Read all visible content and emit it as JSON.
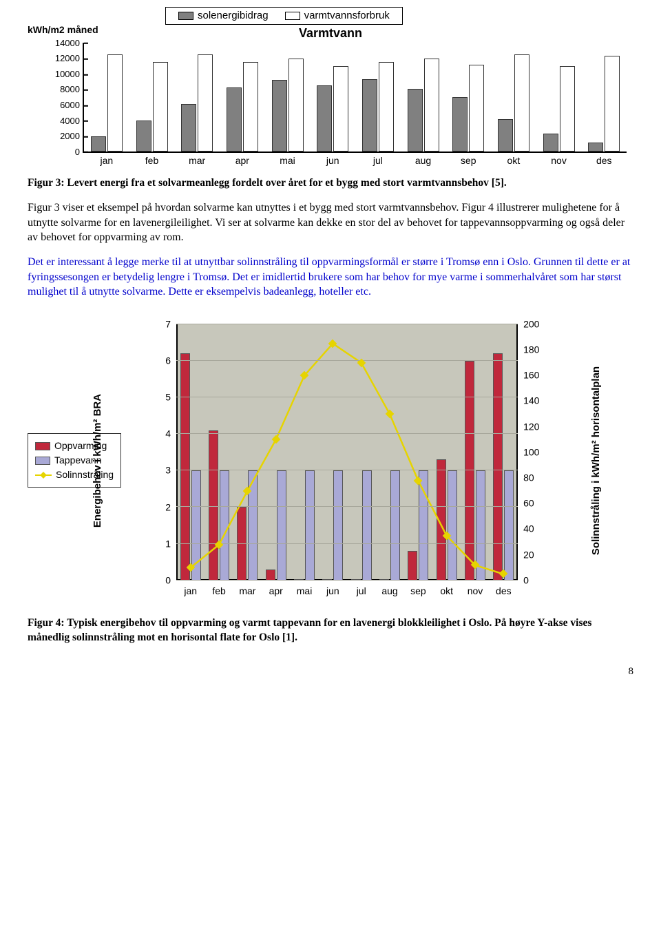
{
  "chart1": {
    "type": "bar",
    "title": "Varmtvann",
    "ylabel": "kWh/m2 måned",
    "ymax": 14000,
    "yticks": [
      0,
      2000,
      4000,
      6000,
      8000,
      10000,
      12000,
      14000
    ],
    "categories": [
      "jan",
      "feb",
      "mar",
      "apr",
      "mai",
      "jun",
      "jul",
      "aug",
      "sep",
      "okt",
      "nov",
      "des"
    ],
    "series": [
      {
        "name": "solenergibidrag",
        "color": "#808080",
        "values": [
          2000,
          4000,
          6100,
          8300,
          9200,
          8500,
          9300,
          8100,
          7000,
          4200,
          2300,
          1200
        ]
      },
      {
        "name": "varmtvannsforbruk",
        "color": "#ffffff",
        "values": [
          12500,
          11500,
          12500,
          11500,
          12000,
          11000,
          11500,
          12000,
          11200,
          12500,
          11000,
          12300
        ]
      }
    ],
    "axis_fontsize": 13,
    "title_fontsize": 18,
    "bar_border": "#333333"
  },
  "caption1": "Figur 3: Levert energi fra et solvarmeanlegg fordelt over året for et bygg med stort varmtvannsbehov [5].",
  "para1": "Figur 3 viser et eksempel på hvordan solvarme kan utnyttes i et bygg med stort varmtvannsbehov. Figur 4 illustrerer mulighetene for å utnytte solvarme for en lavenergileilighet. Vi ser at solvarme kan dekke en stor del av behovet for tappevannsoppvarming og også deler av behovet for oppvarming av rom.",
  "para2": "Det er interessant å legge merke til at utnyttbar solinnstråling til oppvarmingsformål er større i Tromsø enn i Oslo. Grunnen til dette er at fyringssesongen er betydelig lengre i Tromsø. Det er imidlertid brukere som har behov for mye varme i sommerhalvåret som har størst mulighet til å utnytte solvarme. Dette er eksempelvis badeanlegg, hoteller etc.",
  "chart2": {
    "type": "bar+line",
    "categories": [
      "jan",
      "feb",
      "mar",
      "apr",
      "mai",
      "jun",
      "jul",
      "aug",
      "sep",
      "okt",
      "nov",
      "des"
    ],
    "leftAxis": {
      "label": "Energibehov i kWh/m² BRA",
      "min": 0,
      "max": 7,
      "ticks": [
        0,
        1,
        2,
        3,
        4,
        5,
        6,
        7
      ]
    },
    "rightAxis": {
      "label": "Solinnstråling i kWh/m² horisontalplan",
      "min": 0,
      "max": 200,
      "ticks": [
        0,
        20,
        40,
        60,
        80,
        100,
        120,
        140,
        160,
        180,
        200
      ]
    },
    "bg_color": "#c7c7bb",
    "grid_color": "#a8a89c",
    "bars": [
      {
        "name": "Oppvarming",
        "color": "#c0283c",
        "values": [
          6.2,
          4.1,
          2.0,
          0.3,
          0,
          0,
          0,
          0,
          0.8,
          3.3,
          6.0,
          6.2
        ]
      },
      {
        "name": "Tappevann",
        "color": "#a9a9d6",
        "values": [
          3.0,
          3.0,
          3.0,
          3.0,
          3.0,
          3.0,
          3.0,
          3.0,
          3.0,
          3.0,
          3.0,
          3.0
        ]
      }
    ],
    "line": {
      "name": "Solinnstråling",
      "color": "#e6d400",
      "values": [
        10,
        28,
        70,
        110,
        160,
        185,
        170,
        130,
        78,
        35,
        12,
        5
      ]
    },
    "legend_labels": [
      "Oppvarming",
      "Tappevann",
      "Solinnstråling"
    ]
  },
  "caption2": "Figur 4: Typisk energibehov til oppvarming og varmt tappevann for en lavenergi blokkleilighet i Oslo. På høyre Y-akse vises månedlig solinnstråling mot en horisontal flate for Oslo [1].",
  "page_number": "8"
}
